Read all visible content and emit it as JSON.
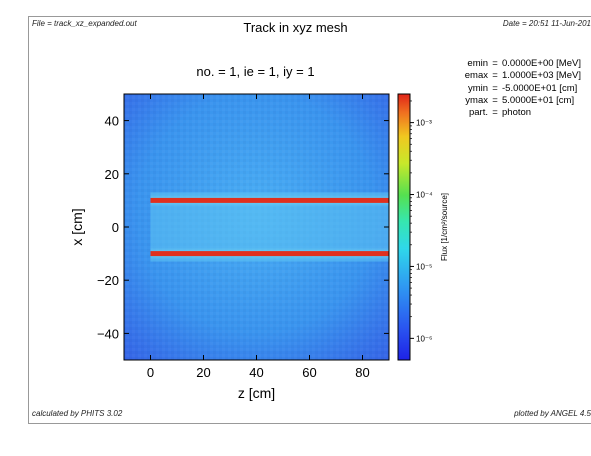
{
  "header": {
    "file": "File = track_xz_expanded.out",
    "main_title": "Track in xyz mesh",
    "date": "Date = 20:51 11-Jun-201",
    "subtitle": "no. =  1,  ie =  1,  iy =  1"
  },
  "info": [
    {
      "key": "emin",
      "value": "0.0000E+00 [MeV]"
    },
    {
      "key": "emax",
      "value": "1.0000E+03 [MeV]"
    },
    {
      "key": "ymin",
      "value": "-5.0000E+01 [cm]"
    },
    {
      "key": "ymax",
      "value": "5.0000E+01 [cm]"
    },
    {
      "key": "part.",
      "value": "photon"
    }
  ],
  "footer": {
    "calculated": "calculated by PHITS 3.02",
    "plotted": "plotted by ANGEL 4.5"
  },
  "colors": {
    "background_field": "#3a9cf0",
    "beam": "#e0301e"
  },
  "chart_data": {
    "type": "heatmap",
    "xlabel": "z [cm]",
    "ylabel": "x [cm]",
    "xlim": [
      -10,
      90
    ],
    "ylim": [
      -50,
      50
    ],
    "xticks": [
      0,
      20,
      40,
      60,
      80
    ],
    "yticks": [
      -40,
      -20,
      0,
      20,
      40
    ],
    "tick_labels_x": [
      "0",
      "20",
      "40",
      "60",
      "80"
    ],
    "tick_labels_y": [
      "−40",
      "−20",
      "0",
      "20",
      "40"
    ],
    "colorbar": {
      "label": "Flux [1/cm²/source]",
      "scale": "log",
      "range": [
        5e-07,
        0.0025
      ],
      "ticks": [
        1e-06,
        1e-05,
        0.0001,
        0.001
      ],
      "tick_labels": [
        "10⁻⁶",
        "10⁻⁵",
        "10⁻⁴",
        "10⁻³"
      ]
    },
    "tracks": [
      {
        "x": 10,
        "z_start": 0,
        "z_end": 90,
        "flux": 0.002
      },
      {
        "x": -10,
        "z_start": 0,
        "z_end": 90,
        "flux": 0.002
      }
    ],
    "background_flux": 3e-06
  }
}
